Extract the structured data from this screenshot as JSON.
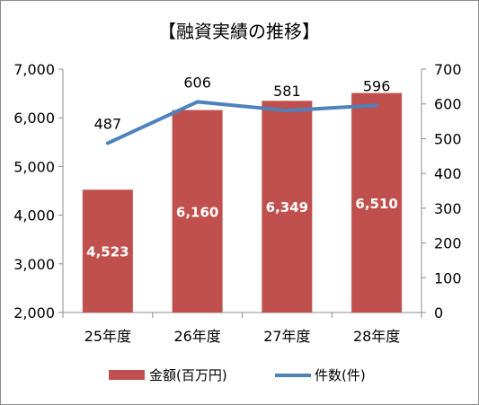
{
  "chart_data": {
    "type": "bar",
    "title": "【融資実績の推移】",
    "categories": [
      "25年度",
      "26年度",
      "27年度",
      "28年度"
    ],
    "series": [
      {
        "name": "金額(百万円)",
        "type": "bar",
        "axis": "left",
        "color": "#c0504d",
        "values": [
          4523,
          6160,
          6349,
          6510
        ],
        "labels": [
          "4,523",
          "6,160",
          "6,349",
          "6,510"
        ]
      },
      {
        "name": "件数(件)",
        "type": "line",
        "axis": "right",
        "color": "#4f81bd",
        "values": [
          487,
          606,
          581,
          596
        ],
        "labels": [
          "487",
          "606",
          "581",
          "596"
        ]
      }
    ],
    "y_left": {
      "min": 2000,
      "max": 7000,
      "step": 1000,
      "ticks": [
        "2,000",
        "3,000",
        "4,000",
        "5,000",
        "6,000",
        "7,000"
      ]
    },
    "y_right": {
      "min": 0,
      "max": 700,
      "step": 100,
      "ticks": [
        "0",
        "100",
        "200",
        "300",
        "400",
        "500",
        "600",
        "700"
      ]
    },
    "grid": false,
    "legend_position": "bottom"
  }
}
